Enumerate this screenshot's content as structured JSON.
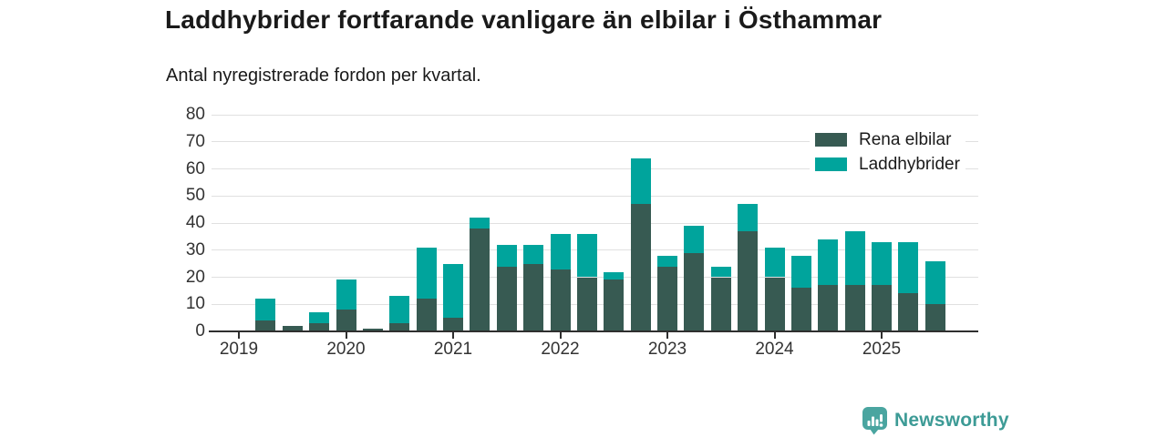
{
  "header": {
    "title": "Laddhybrider fortfarande vanligare än elbilar i Östhammar",
    "subtitle": "Antal nyregistrerade fordon per kvartal."
  },
  "colors": {
    "rena_elbilar": "#375a52",
    "laddhybrider": "#00a49c",
    "axis": "#2f2f2f",
    "gridline": "#e0e0e0",
    "tick_label": "#333333",
    "title_text": "#1a1a1a",
    "brand_icon": "#4aa5a0",
    "brand_text": "#3d9b96"
  },
  "legend": [
    {
      "label": "Rena elbilar",
      "color": "#375a52"
    },
    {
      "label": "Laddhybrider",
      "color": "#00a49c"
    }
  ],
  "chart_data": {
    "type": "bar",
    "stacked": true,
    "title": "Laddhybrider fortfarande vanligare än elbilar i Östhammar",
    "subtitle": "Antal nyregistrerade fordon per kvartal.",
    "xlabel": "",
    "ylabel": "",
    "ylim": [
      0,
      80
    ],
    "y_ticks": [
      0,
      10,
      20,
      30,
      40,
      50,
      60,
      70,
      80
    ],
    "grid": "horizontal",
    "legend_position": "top-right-inside",
    "x_year_ticks": [
      "2019",
      "2020",
      "2021",
      "2022",
      "2023",
      "2024",
      "2025"
    ],
    "categories": [
      "2019 Q1",
      "2019 Q2",
      "2019 Q3",
      "2019 Q4",
      "2020 Q1",
      "2020 Q2",
      "2020 Q3",
      "2020 Q4",
      "2021 Q1",
      "2021 Q2",
      "2021 Q3",
      "2021 Q4",
      "2022 Q1",
      "2022 Q2",
      "2022 Q3",
      "2022 Q4",
      "2023 Q1",
      "2023 Q2",
      "2023 Q3",
      "2023 Q4",
      "2024 Q1",
      "2024 Q2",
      "2024 Q3",
      "2024 Q4",
      "2025 Q1",
      "2025 Q2",
      "2025 Q3"
    ],
    "series": [
      {
        "name": "Rena elbilar",
        "color": "#375a52",
        "values": [
          0,
          4,
          2,
          3,
          8,
          1,
          3,
          12,
          5,
          38,
          24,
          25,
          23,
          20,
          19,
          47,
          24,
          29,
          20,
          37,
          20,
          16,
          17,
          17,
          17,
          14,
          10
        ]
      },
      {
        "name": "Laddhybrider",
        "color": "#00a49c",
        "values": [
          0,
          8,
          0,
          4,
          11,
          0,
          10,
          19,
          20,
          4,
          8,
          7,
          13,
          16,
          3,
          17,
          4,
          10,
          4,
          10,
          11,
          12,
          17,
          20,
          16,
          19,
          16
        ]
      }
    ]
  },
  "footer": {
    "brand": "Newsworthy"
  }
}
